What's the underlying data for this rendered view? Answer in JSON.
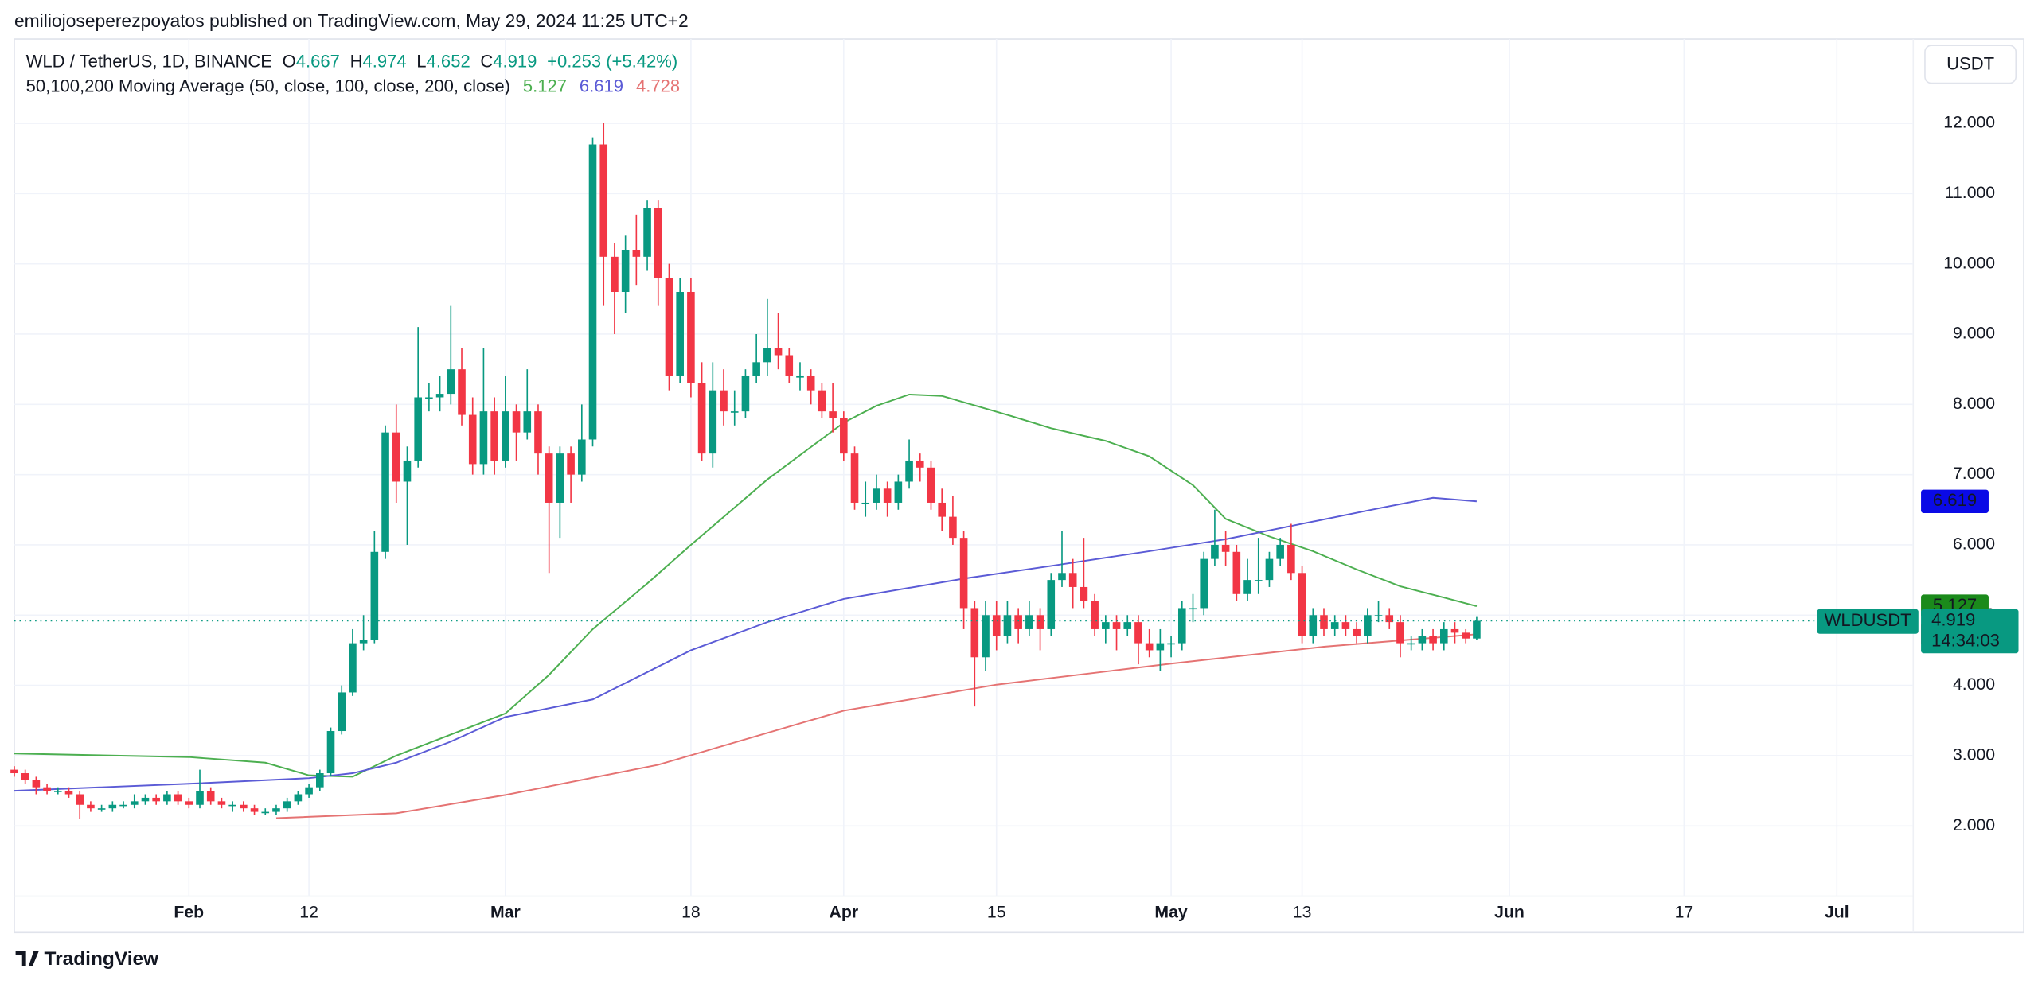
{
  "header": {
    "published": "emiliojoseperezpoyatos published on TradingView.com, May 29, 2024 11:25 UTC+2",
    "footer": "TradingView"
  },
  "chart_data": {
    "type": "candlestick",
    "title": "WLD / TetherUS, 1D, BINANCE",
    "ohlc_labels": [
      "O",
      "H",
      "L",
      "C"
    ],
    "change_label": "+0.253 (+5.42%)",
    "indicator_title": "50,100,200 Moving Average (50, close, 100, close, 200, close)",
    "symbol": "WLDUSDT",
    "currency": "USDT",
    "countdown": "14:34:03",
    "up_color": "#089981",
    "down_color": "#f23645",
    "grid": true,
    "xlim": [
      "2024-01-16",
      "2024-07-08"
    ],
    "xticks": [
      {
        "value": "2024-02-01",
        "label": "Feb"
      },
      {
        "value": "2024-02-12",
        "label": "12"
      },
      {
        "value": "2024-03-01",
        "label": "Mar"
      },
      {
        "value": "2024-03-18",
        "label": "18"
      },
      {
        "value": "2024-04-01",
        "label": "Apr"
      },
      {
        "value": "2024-04-15",
        "label": "15"
      },
      {
        "value": "2024-05-01",
        "label": "May"
      },
      {
        "value": "2024-05-13",
        "label": "13"
      },
      {
        "value": "2024-06-01",
        "label": "Jun"
      },
      {
        "value": "2024-06-17",
        "label": "17"
      },
      {
        "value": "2024-07-01",
        "label": "Jul"
      }
    ],
    "ylim": [
      1.0,
      13.2
    ],
    "yticks": [
      {
        "value": 2,
        "label": "2.000"
      },
      {
        "value": 3,
        "label": "3.000"
      },
      {
        "value": 4,
        "label": "4.000"
      },
      {
        "value": 5,
        "label": "5.000"
      },
      {
        "value": 6,
        "label": "6.000"
      },
      {
        "value": 7,
        "label": "7.000"
      },
      {
        "value": 8,
        "label": "8.000"
      },
      {
        "value": 9,
        "label": "9.000"
      },
      {
        "value": 10,
        "label": "10.000"
      },
      {
        "value": 11,
        "label": "11.000"
      },
      {
        "value": 12,
        "label": "12.000"
      }
    ],
    "x": [
      "2024-01-16",
      "2024-01-17",
      "2024-01-18",
      "2024-01-19",
      "2024-01-20",
      "2024-01-21",
      "2024-01-22",
      "2024-01-23",
      "2024-01-24",
      "2024-01-25",
      "2024-01-26",
      "2024-01-27",
      "2024-01-28",
      "2024-01-29",
      "2024-01-30",
      "2024-01-31",
      "2024-02-01",
      "2024-02-02",
      "2024-02-03",
      "2024-02-04",
      "2024-02-05",
      "2024-02-06",
      "2024-02-07",
      "2024-02-08",
      "2024-02-09",
      "2024-02-10",
      "2024-02-11",
      "2024-02-12",
      "2024-02-13",
      "2024-02-14",
      "2024-02-15",
      "2024-02-16",
      "2024-02-17",
      "2024-02-18",
      "2024-02-19",
      "2024-02-20",
      "2024-02-21",
      "2024-02-22",
      "2024-02-23",
      "2024-02-24",
      "2024-02-25",
      "2024-02-26",
      "2024-02-27",
      "2024-02-28",
      "2024-02-29",
      "2024-03-01",
      "2024-03-02",
      "2024-03-03",
      "2024-03-04",
      "2024-03-05",
      "2024-03-06",
      "2024-03-07",
      "2024-03-08",
      "2024-03-09",
      "2024-03-10",
      "2024-03-11",
      "2024-03-12",
      "2024-03-13",
      "2024-03-14",
      "2024-03-15",
      "2024-03-16",
      "2024-03-17",
      "2024-03-18",
      "2024-03-19",
      "2024-03-20",
      "2024-03-21",
      "2024-03-22",
      "2024-03-23",
      "2024-03-24",
      "2024-03-25",
      "2024-03-26",
      "2024-03-27",
      "2024-03-28",
      "2024-03-29",
      "2024-03-30",
      "2024-03-31",
      "2024-04-01",
      "2024-04-02",
      "2024-04-03",
      "2024-04-04",
      "2024-04-05",
      "2024-04-06",
      "2024-04-07",
      "2024-04-08",
      "2024-04-09",
      "2024-04-10",
      "2024-04-11",
      "2024-04-12",
      "2024-04-13",
      "2024-04-14",
      "2024-04-15",
      "2024-04-16",
      "2024-04-17",
      "2024-04-18",
      "2024-04-19",
      "2024-04-20",
      "2024-04-21",
      "2024-04-22",
      "2024-04-23",
      "2024-04-24",
      "2024-04-25",
      "2024-04-26",
      "2024-04-27",
      "2024-04-28",
      "2024-04-29",
      "2024-04-30",
      "2024-05-01",
      "2024-05-02",
      "2024-05-03",
      "2024-05-04",
      "2024-05-05",
      "2024-05-06",
      "2024-05-07",
      "2024-05-08",
      "2024-05-09",
      "2024-05-10",
      "2024-05-11",
      "2024-05-12",
      "2024-05-13",
      "2024-05-14",
      "2024-05-15",
      "2024-05-16",
      "2024-05-17",
      "2024-05-18",
      "2024-05-19",
      "2024-05-20",
      "2024-05-21",
      "2024-05-22",
      "2024-05-23",
      "2024-05-24",
      "2024-05-25",
      "2024-05-26",
      "2024-05-27",
      "2024-05-28",
      "2024-05-29"
    ],
    "open": [
      2.8,
      2.75,
      2.65,
      2.55,
      2.5,
      2.5,
      2.45,
      2.3,
      2.25,
      2.25,
      2.3,
      2.3,
      2.35,
      2.4,
      2.35,
      2.45,
      2.35,
      2.3,
      2.5,
      2.35,
      2.3,
      2.3,
      2.25,
      2.2,
      2.2,
      2.25,
      2.35,
      2.45,
      2.55,
      2.75,
      3.35,
      3.9,
      4.6,
      4.65,
      5.9,
      7.6,
      6.9,
      7.2,
      8.1,
      8.1,
      8.15,
      8.5,
      7.85,
      7.15,
      7.9,
      7.2,
      7.9,
      7.6,
      7.9,
      7.3,
      6.6,
      7.3,
      7.0,
      7.5,
      11.7,
      10.1,
      9.6,
      10.2,
      10.1,
      10.8,
      9.8,
      8.4,
      9.6,
      8.3,
      7.3,
      8.2,
      7.9,
      7.9,
      8.4,
      8.6,
      8.8,
      8.7,
      8.4,
      8.4,
      8.2,
      7.9,
      7.8,
      7.3,
      6.6,
      6.6,
      6.8,
      6.6,
      6.9,
      7.2,
      7.1,
      6.6,
      6.4,
      6.1,
      5.1,
      4.4,
      5.0,
      4.7,
      5.0,
      4.8,
      5.0,
      4.8,
      5.5,
      5.6,
      5.4,
      5.2,
      4.8,
      4.9,
      4.8,
      4.9,
      4.6,
      4.5,
      4.6,
      4.6,
      5.1,
      5.1,
      5.8,
      6.0,
      5.9,
      5.3,
      5.5,
      5.5,
      5.8,
      6.0,
      5.6,
      4.7,
      5.0,
      4.8,
      4.9,
      4.8,
      4.7,
      5.0,
      5.0,
      4.9,
      4.6,
      4.6,
      4.7,
      4.6,
      4.8,
      4.75,
      4.667
    ],
    "high": [
      2.85,
      2.8,
      2.7,
      2.6,
      2.55,
      2.55,
      2.5,
      2.35,
      2.3,
      2.35,
      2.35,
      2.45,
      2.45,
      2.45,
      2.5,
      2.5,
      2.4,
      2.8,
      2.55,
      2.4,
      2.35,
      2.35,
      2.3,
      2.25,
      2.3,
      2.4,
      2.5,
      2.6,
      2.8,
      3.4,
      4.0,
      4.8,
      5.0,
      6.2,
      7.7,
      8.0,
      7.4,
      9.1,
      8.3,
      8.4,
      9.4,
      8.8,
      8.1,
      8.8,
      8.1,
      8.4,
      8.0,
      8.5,
      8.0,
      7.4,
      7.4,
      7.4,
      8.0,
      11.8,
      12.0,
      10.3,
      10.4,
      10.7,
      10.9,
      10.9,
      10.0,
      9.8,
      9.8,
      8.6,
      8.6,
      8.5,
      8.2,
      8.5,
      9.0,
      9.5,
      9.3,
      8.8,
      8.6,
      8.5,
      8.3,
      8.3,
      7.9,
      7.4,
      6.9,
      7.0,
      6.9,
      7.0,
      7.5,
      7.3,
      7.2,
      6.8,
      6.7,
      6.2,
      5.2,
      5.2,
      5.2,
      5.2,
      5.1,
      5.2,
      5.1,
      5.6,
      6.2,
      5.8,
      6.1,
      5.3,
      5.0,
      5.0,
      5.0,
      5.0,
      4.8,
      4.8,
      4.7,
      5.2,
      5.3,
      5.9,
      6.5,
      6.2,
      6.0,
      5.8,
      6.1,
      5.9,
      6.1,
      6.3,
      5.7,
      5.1,
      5.1,
      5.0,
      5.0,
      4.9,
      5.1,
      5.2,
      5.1,
      5.0,
      4.7,
      4.8,
      4.8,
      4.9,
      4.9,
      4.8,
      4.974
    ],
    "low": [
      2.7,
      2.6,
      2.45,
      2.45,
      2.45,
      2.4,
      2.1,
      2.2,
      2.2,
      2.2,
      2.25,
      2.25,
      2.3,
      2.3,
      2.3,
      2.3,
      2.25,
      2.25,
      2.3,
      2.25,
      2.2,
      2.2,
      2.15,
      2.15,
      2.15,
      2.2,
      2.3,
      2.4,
      2.5,
      2.7,
      3.3,
      3.85,
      4.5,
      4.6,
      5.8,
      6.6,
      6.0,
      7.1,
      7.9,
      7.9,
      8.0,
      7.7,
      7.0,
      7.0,
      7.0,
      7.1,
      7.2,
      7.5,
      7.0,
      5.6,
      6.1,
      6.6,
      6.9,
      7.4,
      9.4,
      9.0,
      9.3,
      9.7,
      9.9,
      9.4,
      8.2,
      8.3,
      8.1,
      7.2,
      7.1,
      7.7,
      7.7,
      7.8,
      8.3,
      8.4,
      8.5,
      8.3,
      8.2,
      8.0,
      7.8,
      7.6,
      7.2,
      6.5,
      6.4,
      6.5,
      6.4,
      6.5,
      6.8,
      6.9,
      6.5,
      6.2,
      6.0,
      4.8,
      3.7,
      4.2,
      4.5,
      4.6,
      4.6,
      4.7,
      4.5,
      4.7,
      5.4,
      5.1,
      5.1,
      4.7,
      4.6,
      4.5,
      4.7,
      4.3,
      4.4,
      4.2,
      4.4,
      4.5,
      4.9,
      5.0,
      5.7,
      5.7,
      5.2,
      5.2,
      5.3,
      5.4,
      5.7,
      5.5,
      4.6,
      4.6,
      4.7,
      4.7,
      4.7,
      4.6,
      4.6,
      4.9,
      4.8,
      4.4,
      4.5,
      4.5,
      4.5,
      4.5,
      4.6,
      4.6,
      4.652
    ],
    "close": [
      2.75,
      2.65,
      2.55,
      2.5,
      2.5,
      2.45,
      2.3,
      2.25,
      2.25,
      2.3,
      2.3,
      2.35,
      2.4,
      2.35,
      2.45,
      2.35,
      2.3,
      2.5,
      2.35,
      2.3,
      2.3,
      2.25,
      2.2,
      2.2,
      2.25,
      2.35,
      2.45,
      2.55,
      2.75,
      3.35,
      3.9,
      4.6,
      4.65,
      5.9,
      7.6,
      6.9,
      7.2,
      8.1,
      8.1,
      8.15,
      8.5,
      7.85,
      7.15,
      7.9,
      7.2,
      7.9,
      7.6,
      7.9,
      7.3,
      6.6,
      7.3,
      7.0,
      7.5,
      11.7,
      10.1,
      9.6,
      10.2,
      10.1,
      10.8,
      9.8,
      8.4,
      9.6,
      8.3,
      7.3,
      8.2,
      7.9,
      7.9,
      8.4,
      8.6,
      8.8,
      8.7,
      8.4,
      8.4,
      8.2,
      7.9,
      7.8,
      7.3,
      6.6,
      6.6,
      6.8,
      6.6,
      6.9,
      7.2,
      7.1,
      6.6,
      6.4,
      6.1,
      5.1,
      4.4,
      5.0,
      4.7,
      5.0,
      4.8,
      5.0,
      4.8,
      5.5,
      5.6,
      5.4,
      5.2,
      4.8,
      4.9,
      4.8,
      4.9,
      4.6,
      4.5,
      4.6,
      4.6,
      5.1,
      5.1,
      5.8,
      6.0,
      5.9,
      5.3,
      5.5,
      5.5,
      5.8,
      6.0,
      5.6,
      4.7,
      5.0,
      4.8,
      4.9,
      4.8,
      4.7,
      5.0,
      5.0,
      4.9,
      4.6,
      4.6,
      4.7,
      4.6,
      4.8,
      4.75,
      4.667,
      4.919
    ],
    "series": [
      {
        "color": "#4caf50",
        "badge_color": "#1b8a1b",
        "x": [
          "2024-01-16",
          "2024-02-01",
          "2024-02-08",
          "2024-02-12",
          "2024-02-16",
          "2024-02-20",
          "2024-02-25",
          "2024-03-01",
          "2024-03-05",
          "2024-03-09",
          "2024-03-14",
          "2024-03-18",
          "2024-03-25",
          "2024-04-01",
          "2024-04-04",
          "2024-04-07",
          "2024-04-10",
          "2024-04-12",
          "2024-04-16",
          "2024-04-20",
          "2024-04-25",
          "2024-04-29",
          "2024-05-03",
          "2024-05-06",
          "2024-05-10",
          "2024-05-14",
          "2024-05-18",
          "2024-05-22",
          "2024-05-26",
          "2024-05-29"
        ],
        "values": [
          3.03,
          2.98,
          2.9,
          2.72,
          2.7,
          3.0,
          3.3,
          3.6,
          4.15,
          4.8,
          5.45,
          6.0,
          6.93,
          7.74,
          7.98,
          8.14,
          8.12,
          8.03,
          7.85,
          7.66,
          7.48,
          7.26,
          6.85,
          6.37,
          6.12,
          5.91,
          5.65,
          5.41,
          5.25,
          5.127
        ]
      },
      {
        "color": "#5b5bd6",
        "badge_color": "#0a0ae6",
        "x": [
          "2024-01-16",
          "2024-02-01",
          "2024-02-12",
          "2024-02-16",
          "2024-02-20",
          "2024-02-25",
          "2024-03-01",
          "2024-03-09",
          "2024-03-18",
          "2024-03-25",
          "2024-04-01",
          "2024-04-12",
          "2024-04-20",
          "2024-04-29",
          "2024-05-06",
          "2024-05-13",
          "2024-05-20",
          "2024-05-25",
          "2024-05-29"
        ],
        "values": [
          2.5,
          2.6,
          2.68,
          2.75,
          2.9,
          3.2,
          3.55,
          3.8,
          4.5,
          4.9,
          5.23,
          5.52,
          5.7,
          5.91,
          6.08,
          6.3,
          6.52,
          6.67,
          6.619
        ]
      },
      {
        "color": "#e57373",
        "badge_color": "#f0141e",
        "x": [
          "2024-02-09",
          "2024-02-20",
          "2024-03-01",
          "2024-03-15",
          "2024-04-01",
          "2024-04-15",
          "2024-05-01",
          "2024-05-15",
          "2024-05-29"
        ],
        "values": [
          2.11,
          2.18,
          2.44,
          2.87,
          3.64,
          4.01,
          4.31,
          4.55,
          4.728
        ]
      }
    ]
  }
}
